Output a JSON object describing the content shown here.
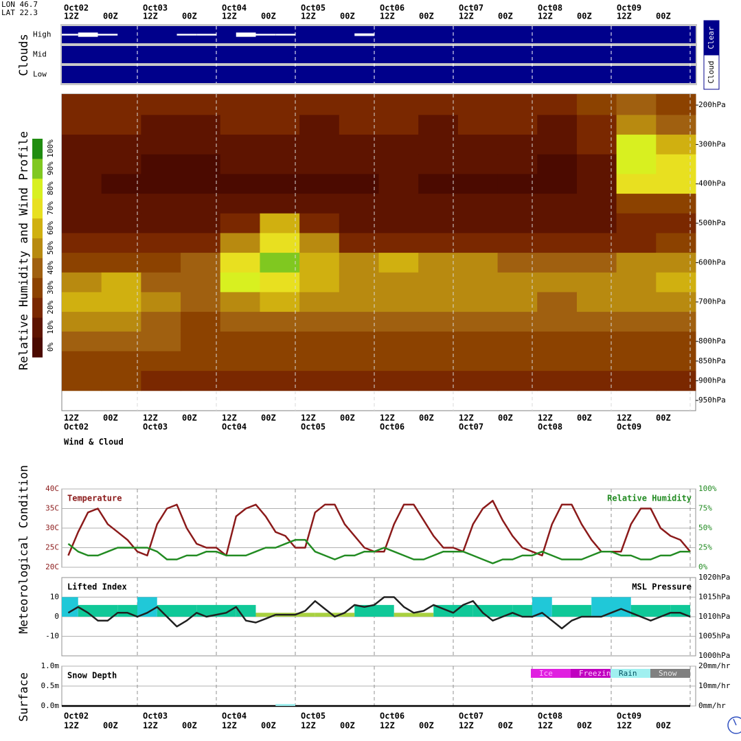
{
  "header": {
    "lon": "LON 46.7",
    "lat": "LAT 22.3"
  },
  "time_axis": {
    "days": [
      "Oct02",
      "Oct03",
      "Oct04",
      "Oct05",
      "Oct06",
      "Oct07",
      "Oct08",
      "Oct09"
    ],
    "hours": [
      "12Z",
      "00Z"
    ]
  },
  "panel_labels": [
    "Clouds",
    "Relative Humidity and Wind Profile",
    "Meteorological Condition",
    "Surface"
  ],
  "wind_cloud_label": "Wind & Cloud",
  "chart_data": [
    {
      "type": "cloud_cover",
      "background": "#00008b",
      "series": [
        {
          "name": "High",
          "color": "#ffffff",
          "values": [
            10,
            25,
            10,
            0,
            0,
            0,
            10,
            10,
            0,
            25,
            10,
            10,
            0,
            0,
            0,
            15,
            0,
            0,
            0,
            0,
            0,
            0,
            0,
            0,
            0,
            0,
            0,
            0,
            0,
            0,
            0,
            0
          ]
        },
        {
          "name": "Mid",
          "color": "#ffffff",
          "values": [
            0,
            0,
            0,
            0,
            0,
            0,
            0,
            0,
            0,
            0,
            0,
            0,
            0,
            0,
            0,
            0,
            0,
            0,
            0,
            0,
            0,
            0,
            0,
            0,
            0,
            0,
            0,
            0,
            0,
            0,
            0,
            0
          ]
        },
        {
          "name": "Low",
          "color": "#ffffff",
          "values": [
            0,
            0,
            0,
            0,
            0,
            0,
            0,
            0,
            0,
            0,
            0,
            0,
            0,
            0,
            0,
            0,
            0,
            0,
            0,
            0,
            0,
            0,
            0,
            0,
            0,
            0,
            0,
            0,
            0,
            0,
            0,
            0
          ]
        }
      ],
      "legend": {
        "clear": "Clear",
        "cloud": "Cloud"
      }
    },
    {
      "type": "heatmap",
      "ylim": [
        172,
        976
      ],
      "yticks": [
        {
          "value": 200,
          "label": "200hPa"
        },
        {
          "value": 300,
          "label": "300hPa"
        },
        {
          "value": 400,
          "label": "400hPa"
        },
        {
          "value": 500,
          "label": "500hPa"
        },
        {
          "value": 600,
          "label": "600hPa"
        },
        {
          "value": 700,
          "label": "700hPa"
        },
        {
          "value": 800,
          "label": "800hPa"
        },
        {
          "value": 850,
          "label": "850hPa"
        },
        {
          "value": 900,
          "label": "900hPa"
        },
        {
          "value": 950,
          "label": "950hPa"
        }
      ],
      "levels": [
        200,
        250,
        300,
        350,
        400,
        450,
        500,
        550,
        600,
        650,
        700,
        750,
        800,
        850,
        900
      ],
      "values": [
        [
          25,
          25,
          20,
          20,
          25,
          25,
          20,
          20,
          25,
          20,
          25,
          20,
          25,
          30,
          45,
          30
        ],
        [
          20,
          20,
          15,
          15,
          20,
          20,
          15,
          20,
          20,
          15,
          20,
          20,
          15,
          25,
          50,
          40
        ],
        [
          15,
          15,
          10,
          10,
          15,
          15,
          15,
          15,
          15,
          15,
          15,
          10,
          10,
          20,
          80,
          60
        ],
        [
          10,
          10,
          5,
          5,
          10,
          10,
          10,
          10,
          10,
          10,
          10,
          10,
          5,
          15,
          85,
          75
        ],
        [
          10,
          5,
          5,
          5,
          5,
          5,
          5,
          5,
          10,
          5,
          5,
          5,
          5,
          10,
          70,
          70
        ],
        [
          10,
          10,
          10,
          10,
          10,
          10,
          10,
          10,
          10,
          10,
          10,
          10,
          10,
          15,
          30,
          30
        ],
        [
          15,
          15,
          15,
          15,
          20,
          65,
          20,
          15,
          15,
          15,
          15,
          15,
          15,
          15,
          20,
          25
        ],
        [
          20,
          20,
          20,
          25,
          55,
          75,
          55,
          25,
          20,
          20,
          20,
          20,
          20,
          25,
          25,
          30
        ],
        [
          30,
          30,
          30,
          40,
          70,
          90,
          65,
          50,
          60,
          55,
          50,
          45,
          40,
          45,
          50,
          55
        ],
        [
          55,
          60,
          45,
          45,
          80,
          75,
          65,
          55,
          55,
          55,
          55,
          50,
          50,
          55,
          55,
          60
        ],
        [
          60,
          65,
          55,
          40,
          55,
          60,
          55,
          50,
          50,
          50,
          50,
          50,
          45,
          50,
          50,
          50
        ],
        [
          50,
          50,
          45,
          35,
          40,
          45,
          45,
          40,
          40,
          40,
          40,
          40,
          40,
          40,
          40,
          40
        ],
        [
          45,
          45,
          40,
          30,
          35,
          35,
          35,
          35,
          35,
          35,
          35,
          35,
          35,
          35,
          35,
          35
        ],
        [
          35,
          35,
          30,
          30,
          30,
          30,
          30,
          30,
          30,
          30,
          30,
          30,
          30,
          30,
          30,
          30
        ],
        [
          30,
          30,
          25,
          25,
          25,
          25,
          25,
          25,
          25,
          25,
          25,
          25,
          25,
          25,
          25,
          25
        ]
      ],
      "colorscale": [
        "#4b0a00",
        "#5e1400",
        "#7a2800",
        "#8c4200",
        "#a06010",
        "#b88a10",
        "#d0b010",
        "#e8e020",
        "#d8f020",
        "#80c820",
        "#208c10"
      ],
      "colorbar_ticks": [
        {
          "value": 0,
          "label": "0%"
        },
        {
          "value": 10,
          "label": "10%"
        },
        {
          "value": 20,
          "label": "20%"
        },
        {
          "value": 30,
          "label": "30%"
        },
        {
          "value": 40,
          "label": "40%"
        },
        {
          "value": 50,
          "label": "50%"
        },
        {
          "value": 60,
          "label": "60%"
        },
        {
          "value": 70,
          "label": "70%"
        },
        {
          "value": 80,
          "label": "80%"
        },
        {
          "value": 90,
          "label": "90%"
        },
        {
          "value": 100,
          "label": "100%"
        }
      ]
    },
    {
      "type": "combo",
      "grid": true,
      "ylim": [
        20,
        40
      ],
      "yticks": [
        {
          "value": 40,
          "label": "40C"
        },
        {
          "value": 35,
          "label": "35C"
        },
        {
          "value": 30,
          "label": "30C"
        },
        {
          "value": 25,
          "label": "25C"
        },
        {
          "value": 20,
          "label": "20C"
        }
      ],
      "y2lim": [
        0,
        100
      ],
      "y2ticks": [
        {
          "value": 100,
          "label": "100%"
        },
        {
          "value": 75,
          "label": "75%"
        },
        {
          "value": 50,
          "label": "50%"
        },
        {
          "value": 25,
          "label": "25%"
        },
        {
          "value": 0,
          "label": "0%"
        }
      ],
      "series": [
        {
          "name": "Temperature",
          "type": "line",
          "color": "#8b1a1a",
          "values": [
            null,
            23,
            29,
            34,
            35,
            31,
            29,
            27,
            24,
            23,
            31,
            35,
            36,
            30,
            26,
            25,
            25,
            23,
            33,
            35,
            36,
            33,
            29,
            28,
            25,
            25,
            34,
            36,
            36,
            31,
            28,
            25,
            24,
            24,
            31,
            36,
            36,
            32,
            28,
            25,
            25,
            24,
            31,
            35,
            37,
            32,
            28,
            25,
            24,
            23,
            31,
            36,
            36,
            31,
            27,
            24,
            24,
            24,
            31,
            35,
            35,
            30,
            28,
            27,
            24
          ]
        },
        {
          "name": "Relative Humidity",
          "type": "line",
          "axis": "y2",
          "color": "#228b22",
          "values": [
            null,
            30,
            20,
            15,
            15,
            20,
            25,
            25,
            25,
            25,
            20,
            10,
            10,
            15,
            15,
            20,
            20,
            15,
            15,
            15,
            20,
            25,
            25,
            30,
            35,
            35,
            20,
            15,
            10,
            15,
            15,
            20,
            20,
            25,
            20,
            15,
            10,
            10,
            15,
            20,
            20,
            20,
            15,
            10,
            5,
            10,
            10,
            15,
            15,
            20,
            15,
            10,
            10,
            10,
            15,
            20,
            20,
            15,
            15,
            10,
            10,
            15,
            15,
            20,
            20
          ]
        }
      ]
    },
    {
      "type": "combo",
      "grid": true,
      "ylim": [
        -20,
        20
      ],
      "yticks": [
        10,
        0,
        -10
      ],
      "y2lim": [
        1000,
        1020
      ],
      "y2ticks": [
        {
          "value": 1020,
          "label": "1020hPa"
        },
        {
          "value": 1015,
          "label": "1015hPa"
        },
        {
          "value": 1010,
          "label": "1010hPa"
        },
        {
          "value": 1005,
          "label": "1005hPa"
        },
        {
          "value": 1000,
          "label": "1000hPa"
        }
      ],
      "series": [
        {
          "name": "Lifted Index",
          "type": "bar",
          "color": "#000000",
          "values": [
            10,
            6,
            6,
            6,
            10,
            6,
            6,
            6,
            6,
            6,
            2,
            2,
            2,
            2,
            2,
            6,
            6,
            2,
            2,
            6,
            6,
            6,
            6,
            6,
            10,
            6,
            6,
            10,
            10,
            6,
            6,
            6
          ],
          "colors": [
            "#20c8d8",
            "#10c898",
            "#10c898",
            "#10c898",
            "#20c8d8",
            "#10c898",
            "#10c898",
            "#10c898",
            "#10c898",
            "#10c898",
            "#a8d040",
            "#a8d040",
            "#a8d040",
            "#a8d040",
            "#a8d040",
            "#10c898",
            "#10c898",
            "#a8d040",
            "#a8d040",
            "#10c898",
            "#10c898",
            "#10c898",
            "#10c898",
            "#10c898",
            "#20c8d8",
            "#10c898",
            "#10c898",
            "#20c8d8",
            "#20c8d8",
            "#10c898",
            "#10c898",
            "#10c898"
          ]
        },
        {
          "name": "MSL Pressure",
          "type": "line",
          "axis": "y2",
          "color": "#202020",
          "values": [
            null,
            1011,
            1012.5,
            1011,
            1009,
            1009,
            1011,
            1011,
            1010,
            1011,
            1012.5,
            1010,
            1007.5,
            1009,
            1011,
            1010,
            1010.5,
            1011,
            1012.5,
            1009,
            1008.5,
            1009.5,
            1010.5,
            1010.5,
            1010.5,
            1011.5,
            1014,
            1012,
            1010,
            1011,
            1013,
            1012.5,
            1013,
            1015,
            1015,
            1012.5,
            1011,
            1011.5,
            1013,
            1012,
            1011,
            1013,
            1014,
            1011,
            1009,
            1010,
            1011,
            1010,
            1010,
            1011,
            1009,
            1007,
            1009,
            1010,
            1010,
            1010,
            1011,
            1012,
            1011,
            1010,
            1009,
            1010,
            1011,
            1011,
            1010
          ]
        }
      ]
    },
    {
      "type": "combo",
      "grid": true,
      "ylim": [
        0,
        1
      ],
      "yticks": [
        {
          "value": 1,
          "label": "1.0m"
        },
        {
          "value": 0.5,
          "label": "0.5m"
        },
        {
          "value": 0,
          "label": "0.0m"
        }
      ],
      "y2lim": [
        0,
        20
      ],
      "y2ticks": [
        {
          "value": 20,
          "label": "20mm/hr"
        },
        {
          "value": 10,
          "label": "10mm/hr"
        },
        {
          "value": 0,
          "label": "0mm/hr"
        }
      ],
      "series": [
        {
          "name": "Snow Depth",
          "type": "line",
          "color": "#000000",
          "values": [
            0,
            0,
            0,
            0,
            0,
            0,
            0,
            0,
            0,
            0,
            0,
            0,
            0,
            0,
            0,
            0,
            0,
            0,
            0,
            0,
            0,
            0,
            0,
            0,
            0,
            0,
            0,
            0,
            0,
            0,
            0,
            0
          ]
        },
        {
          "name": "Ice",
          "type": "bar",
          "axis": "y2",
          "color": "#e020e0",
          "values": [
            0,
            0,
            0,
            0,
            0,
            0,
            0,
            0,
            0,
            0,
            0,
            0,
            0,
            0,
            0,
            0,
            0,
            0,
            0,
            0,
            0,
            0,
            0,
            0,
            0,
            0,
            0,
            0,
            0,
            0,
            0,
            0
          ]
        },
        {
          "name": "Freezing",
          "type": "bar",
          "axis": "y2",
          "color": "#c000c0",
          "values": [
            0,
            0,
            0,
            0,
            0,
            0,
            0,
            0,
            0,
            0,
            0,
            0,
            0,
            0,
            0,
            0,
            0,
            0,
            0,
            0,
            0,
            0,
            0,
            0,
            0,
            0,
            0,
            0,
            0,
            0,
            0,
            0
          ]
        },
        {
          "name": "Rain",
          "type": "bar",
          "axis": "y2",
          "color": "#a0f0f0",
          "values": [
            0,
            0,
            0,
            0,
            0,
            0,
            0,
            0,
            0,
            0,
            0,
            1,
            0,
            0,
            0,
            0,
            0,
            0,
            0,
            0,
            0,
            0,
            0,
            0,
            0,
            0,
            0,
            0,
            0,
            0,
            0,
            0
          ]
        },
        {
          "name": "Snow",
          "type": "bar",
          "axis": "y2",
          "color": "#808080",
          "values": [
            0,
            0,
            0,
            0,
            0,
            0,
            0,
            0,
            0,
            0,
            0,
            0,
            0,
            0,
            0,
            0,
            0,
            0,
            0,
            0,
            0,
            0,
            0,
            0,
            0,
            0,
            0,
            0,
            0,
            0,
            0,
            0
          ]
        }
      ]
    }
  ]
}
